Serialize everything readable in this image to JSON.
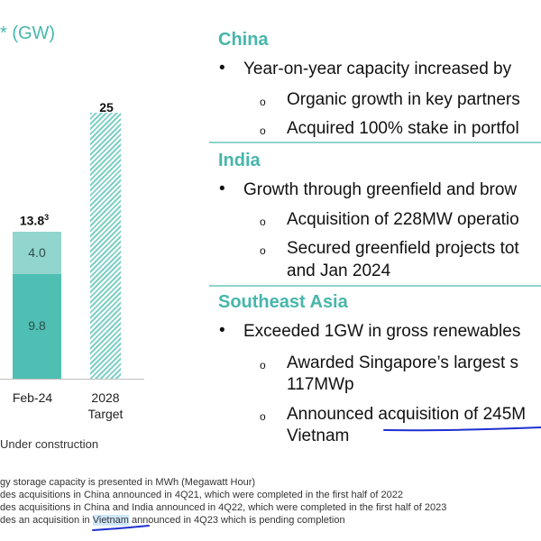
{
  "chart": {
    "title_fragment": "* (GW)",
    "bars": [
      {
        "category": "Feb-24",
        "total_label": "13.8",
        "total_sup": "3",
        "segments": [
          {
            "value": 9.8,
            "label": "9.8"
          },
          {
            "value": 4.0,
            "label": "4.0"
          }
        ]
      },
      {
        "category": "2028",
        "category_line2": "Target",
        "total_label": "25",
        "segments": [
          {
            "value": 25,
            "label": ""
          }
        ]
      }
    ],
    "legend_text": "Under construction",
    "colors": {
      "operational": "#4fbfb3",
      "under_construction": "#92d5ce",
      "target_hatch": "#7fcfc6"
    }
  },
  "chart_data": {
    "type": "bar",
    "categories": [
      "Feb-24",
      "2028 Target"
    ],
    "series": [
      {
        "values": [
          9.8,
          0
        ]
      },
      {
        "name": "Under construction",
        "values": [
          4.0,
          0
        ]
      },
      {
        "values": [
          0,
          25
        ]
      }
    ],
    "totals": [
      13.8,
      25
    ],
    "ylabel": "GW"
  },
  "footnotes": [
    "gy storage capacity is presented in MWh (Megawatt Hour)",
    "des acquisitions in China announced in 4Q21, which were completed in the first half of 2022",
    "des acquisitions in China and India announced in 4Q22, which were completed in the first half of 2023",
    "des an acquisition in ",
    "Vietnam",
    " announced in 4Q23 which is pending completion"
  ],
  "sections": {
    "china": {
      "title": "China",
      "bullet": "Year-on-year capacity increased by",
      "subs": [
        "Organic growth in key partners",
        "Acquired 100% stake in portfol"
      ]
    },
    "india": {
      "title": "India",
      "bullet": "Growth through greenfield and brow",
      "subs": [
        "Acquisition of 228MW operatio",
        "Secured greenfield projects tot",
        "and Jan 2024"
      ]
    },
    "sea": {
      "title": "Southeast Asia",
      "bullet": "Exceeded 1GW in gross renewables",
      "subs": [
        "Awarded Singapore’s largest s",
        "117MWp",
        "Announced acquisition of 245M",
        "Vietnam"
      ]
    }
  },
  "glyphs": {
    "bullet": "•",
    "sub_bullet": "o"
  },
  "annotation_color": "#1f2fd0"
}
